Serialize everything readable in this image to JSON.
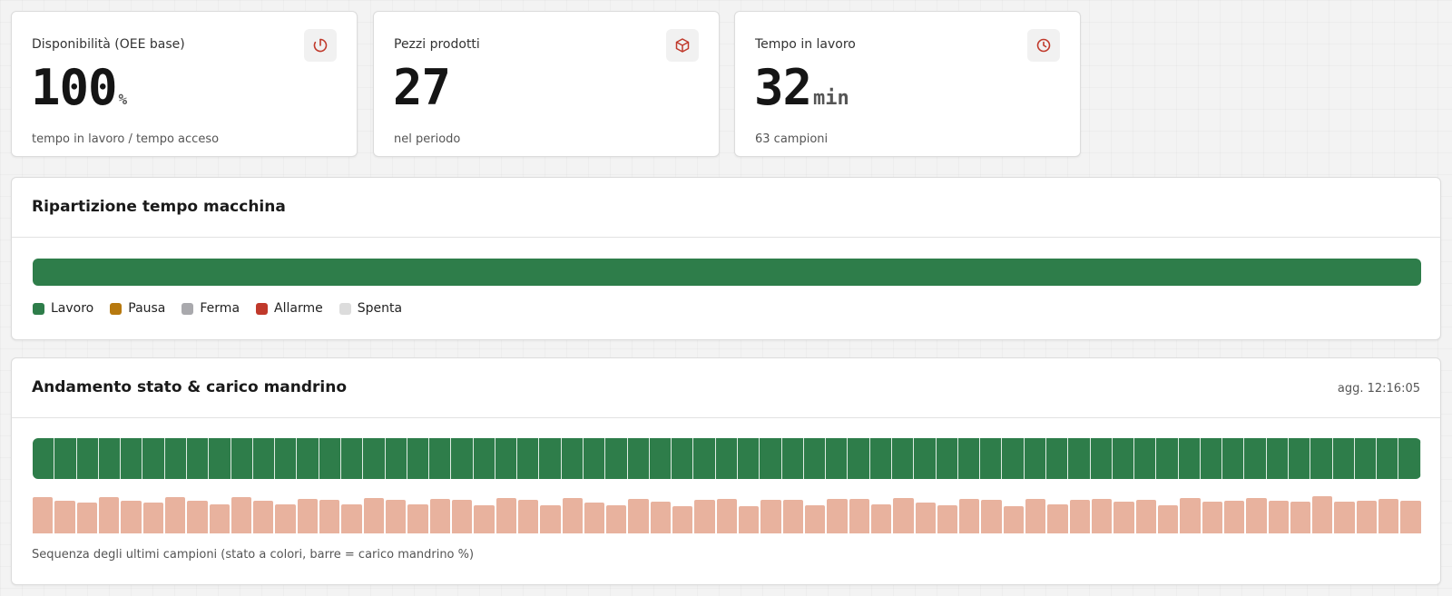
{
  "kpis": [
    {
      "label": "Disponibilità (OEE base)",
      "value": "100",
      "unit": "%",
      "sub": "tempo in lavoro / tempo acceso",
      "icon": "power-icon"
    },
    {
      "label": "Pezzi prodotti",
      "value": "27",
      "unit": "",
      "sub": "nel periodo",
      "icon": "box-icon"
    },
    {
      "label": "Tempo in lavoro",
      "value": "32",
      "unit": "min",
      "sub": "63 campioni",
      "icon": "clock-icon"
    }
  ],
  "colors": {
    "accent": "#c0392b",
    "lavoro": "#2e7d4a",
    "pausa": "#b7790f",
    "ferma": "#a9a9ad",
    "allarme": "#c0392b",
    "spenta": "#dcdcdc",
    "load": "#e8b29e"
  },
  "breakdown": {
    "title": "Ripartizione tempo macchina",
    "segments": [
      {
        "state": "lavoro",
        "fraction": 1.0
      },
      {
        "state": "pausa",
        "fraction": 0
      },
      {
        "state": "ferma",
        "fraction": 0
      },
      {
        "state": "allarme",
        "fraction": 0
      },
      {
        "state": "spenta",
        "fraction": 0
      }
    ],
    "legend": [
      {
        "state": "lavoro",
        "label": "Lavoro"
      },
      {
        "state": "pausa",
        "label": "Pausa"
      },
      {
        "state": "ferma",
        "label": "Ferma"
      },
      {
        "state": "allarme",
        "label": "Allarme"
      },
      {
        "state": "spenta",
        "label": "Spenta"
      }
    ]
  },
  "trend": {
    "title": "Andamento stato & carico mandrino",
    "updated": "agg. 12:16:05",
    "caption": "Sequenza degli ultimi campioni (stato a colori, barre = carico mandrino %)",
    "samples_state": [
      "lavoro",
      "lavoro",
      "lavoro",
      "lavoro",
      "lavoro",
      "lavoro",
      "lavoro",
      "lavoro",
      "lavoro",
      "lavoro",
      "lavoro",
      "lavoro",
      "lavoro",
      "lavoro",
      "lavoro",
      "lavoro",
      "lavoro",
      "lavoro",
      "lavoro",
      "lavoro",
      "lavoro",
      "lavoro",
      "lavoro",
      "lavoro",
      "lavoro",
      "lavoro",
      "lavoro",
      "lavoro",
      "lavoro",
      "lavoro",
      "lavoro",
      "lavoro",
      "lavoro",
      "lavoro",
      "lavoro",
      "lavoro",
      "lavoro",
      "lavoro",
      "lavoro",
      "lavoro",
      "lavoro",
      "lavoro",
      "lavoro",
      "lavoro",
      "lavoro",
      "lavoro",
      "lavoro",
      "lavoro",
      "lavoro",
      "lavoro",
      "lavoro",
      "lavoro",
      "lavoro",
      "lavoro",
      "lavoro",
      "lavoro",
      "lavoro",
      "lavoro",
      "lavoro",
      "lavoro",
      "lavoro",
      "lavoro",
      "lavoro"
    ],
    "spindle_load_pct": [
      89,
      79,
      76,
      89,
      81,
      76,
      88,
      81,
      70,
      89,
      81,
      72,
      85,
      82,
      70,
      86,
      82,
      70,
      84,
      82,
      68,
      86,
      82,
      68,
      86,
      75,
      68,
      84,
      78,
      67,
      82,
      84,
      67,
      83,
      82,
      68,
      84,
      84,
      70,
      86,
      75,
      68,
      84,
      82,
      66,
      84,
      70,
      82,
      85,
      78,
      82,
      68,
      86,
      78,
      81,
      86,
      80,
      78,
      90,
      78,
      79,
      84,
      80
    ]
  }
}
